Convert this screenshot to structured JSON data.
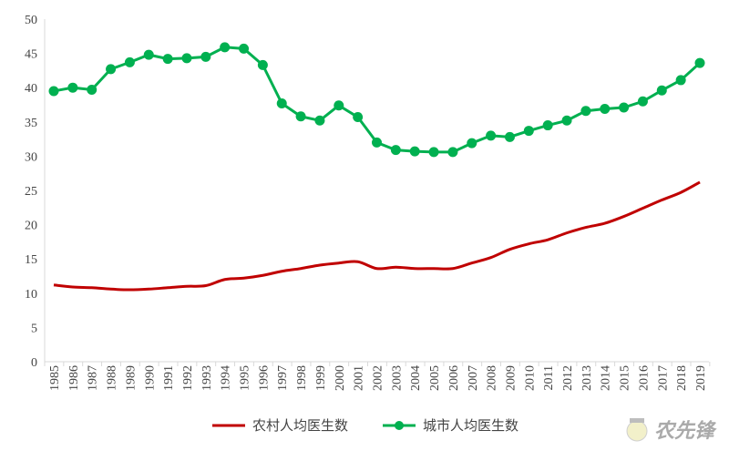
{
  "chart_data": {
    "type": "line",
    "x": [
      1985,
      1986,
      1987,
      1988,
      1989,
      1990,
      1991,
      1992,
      1993,
      1994,
      1995,
      1996,
      1997,
      1998,
      1999,
      2000,
      2001,
      2002,
      2003,
      2004,
      2005,
      2006,
      2007,
      2008,
      2009,
      2010,
      2011,
      2012,
      2013,
      2014,
      2015,
      2016,
      2017,
      2018,
      2019
    ],
    "ylim": [
      0,
      50
    ],
    "yticks": [
      0,
      5,
      10,
      15,
      20,
      25,
      30,
      35,
      40,
      45,
      50
    ],
    "grid": false,
    "legend_position": "bottom",
    "series": [
      {
        "name": "农村人均医生数",
        "color": "#c00000",
        "marker": "none",
        "smooth": true,
        "values": [
          11.2,
          10.9,
          10.8,
          10.6,
          10.5,
          10.6,
          10.8,
          11.0,
          11.1,
          12.0,
          12.2,
          12.6,
          13.2,
          13.6,
          14.1,
          14.4,
          14.6,
          13.6,
          13.8,
          13.6,
          13.6,
          13.6,
          14.4,
          15.2,
          16.4,
          17.2,
          17.8,
          18.8,
          19.6,
          20.2,
          21.2,
          22.4,
          23.6,
          24.7,
          26.2
        ]
      },
      {
        "name": "城市人均医生数",
        "color": "#00b050",
        "marker": "circle",
        "smooth": false,
        "values": [
          39.5,
          40.0,
          39.7,
          42.7,
          43.7,
          44.8,
          44.2,
          44.3,
          44.5,
          45.9,
          45.7,
          43.3,
          37.7,
          35.8,
          35.2,
          37.4,
          35.7,
          32.0,
          30.9,
          30.7,
          30.6,
          30.6,
          31.9,
          33.0,
          32.8,
          33.7,
          34.5,
          35.2,
          36.6,
          36.9,
          37.1,
          38.0,
          39.6,
          41.1,
          43.6
        ]
      }
    ]
  },
  "watermark": {
    "text": "农先锋"
  }
}
